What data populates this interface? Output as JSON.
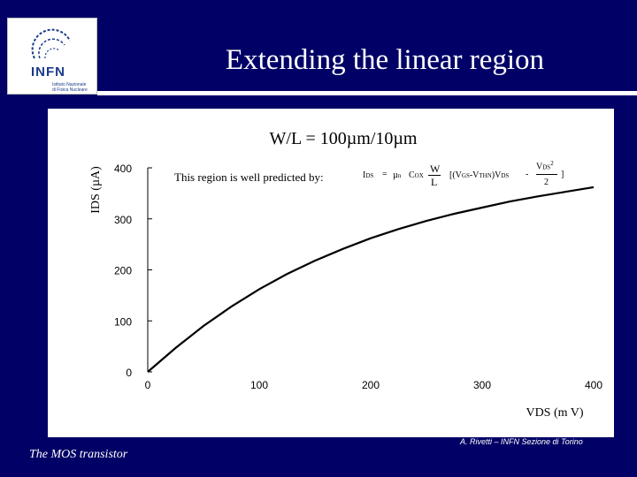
{
  "logo": {
    "name": "INFN",
    "sub_lines": [
      "Istituto Nazionale",
      "di Fisica Nucleare"
    ]
  },
  "slide": {
    "title": "Extending the linear region",
    "footer_left": "The MOS transistor",
    "footer_right": "A. Rivetti – INFN Sezione di Torino"
  },
  "chart_data": {
    "type": "line",
    "title": "W/L = 100µm/10µm",
    "xlabel": "VDS (m V)",
    "ylabel": "IDS (µA)",
    "xlim": [
      0,
      400
    ],
    "ylim": [
      0,
      400
    ],
    "x_ticks": [
      "0",
      "100",
      "200",
      "300",
      "400"
    ],
    "y_ticks": [
      "0",
      "100",
      "200",
      "300",
      "400"
    ],
    "series": [
      {
        "x": [
          0,
          25,
          50,
          75,
          100,
          125,
          150,
          175,
          200,
          225,
          250,
          275,
          300,
          325,
          350,
          375,
          400
        ],
        "values": [
          0,
          47,
          90,
          128,
          162,
          192,
          218,
          241,
          262,
          280,
          296,
          310,
          322,
          334,
          344,
          353,
          362
        ],
        "color": "#000000"
      }
    ],
    "annotation": {
      "text": "This region is well predicted by:",
      "formula": {
        "ids": "I",
        "ids_sub": "DS",
        "eq": "=",
        "mu": "µ",
        "mu_sub": "n",
        "cox": "C",
        "cox_sub": "OX",
        "w": "W",
        "l": "L",
        "bracket_open": "[(V",
        "vgs_sub": "GS",
        "minus": "-V",
        "vthn_sub": "THN",
        "vds_part": ")V",
        "vds_sub": "DS",
        "minus2": "-",
        "vds2": "V",
        "vds2_sub": "DS",
        "sq": "2",
        "den": "2",
        "bracket_close": "]"
      }
    }
  }
}
